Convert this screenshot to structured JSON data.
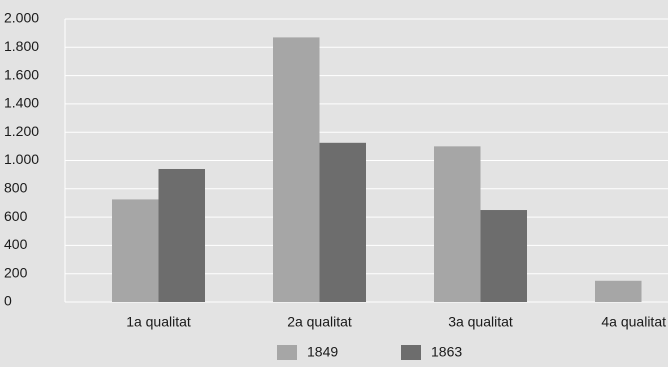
{
  "chart_data": {
    "type": "bar",
    "categories": [
      "1a qualitat",
      "2a qualitat",
      "3a qualitat",
      "4a qualitat"
    ],
    "series": [
      {
        "name": "1849",
        "color": "#a6a6a6",
        "values": [
          725,
          1870,
          1100,
          150
        ]
      },
      {
        "name": "1863",
        "color": "#6d6d6d",
        "values": [
          940,
          1125,
          650,
          null
        ]
      }
    ],
    "ylim": [
      0,
      2000
    ],
    "yticks": [
      0,
      200,
      400,
      600,
      800,
      {
        "value": 1000,
        "label": "1.000"
      },
      {
        "value": 1200,
        "label": "1.200"
      },
      {
        "value": 1400,
        "label": "1.400"
      },
      {
        "value": 1600,
        "label": "1.600"
      },
      {
        "value": 1800,
        "label": "1.800"
      },
      {
        "value": 2000,
        "label": "2.000"
      }
    ],
    "grid": true,
    "legend": "bottom"
  }
}
